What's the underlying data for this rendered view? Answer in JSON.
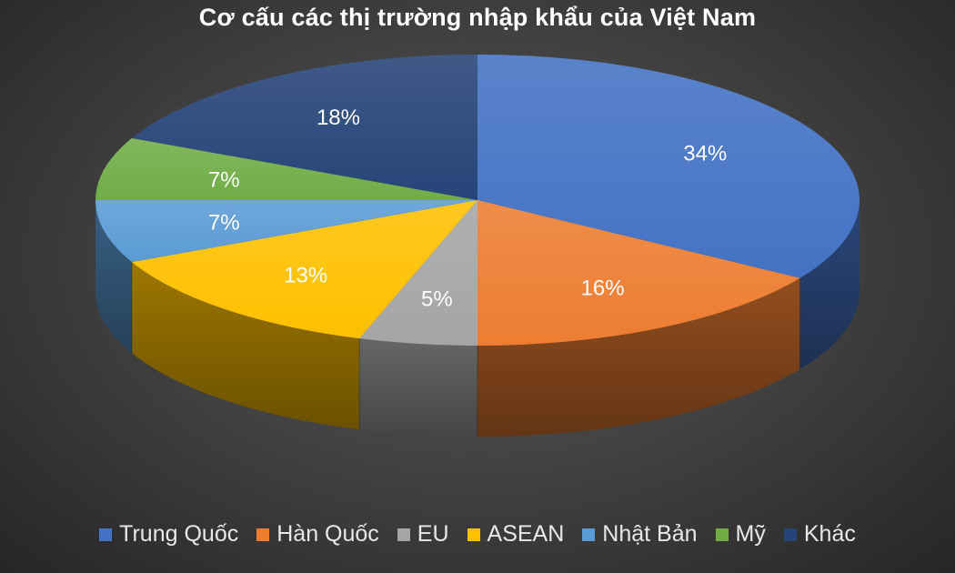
{
  "chart_data": {
    "type": "pie",
    "title": "Cơ cấu các thị trường nhập khẩu của Việt Nam",
    "categories": [
      "Trung Quốc",
      "Hàn Quốc",
      "EU",
      "ASEAN",
      "Nhật Bản",
      "Mỹ",
      "Khác"
    ],
    "values": [
      34,
      16,
      5,
      13,
      7,
      7,
      18
    ],
    "data_labels": [
      "34%",
      "16%",
      "5%",
      "13%",
      "7%",
      "7%",
      "18%"
    ],
    "colors": [
      "#4472C4",
      "#ED7D31",
      "#A5A5A5",
      "#FFC000",
      "#5B9BD5",
      "#70AD47",
      "#264478"
    ],
    "style": "3d",
    "legend_position": "bottom"
  }
}
